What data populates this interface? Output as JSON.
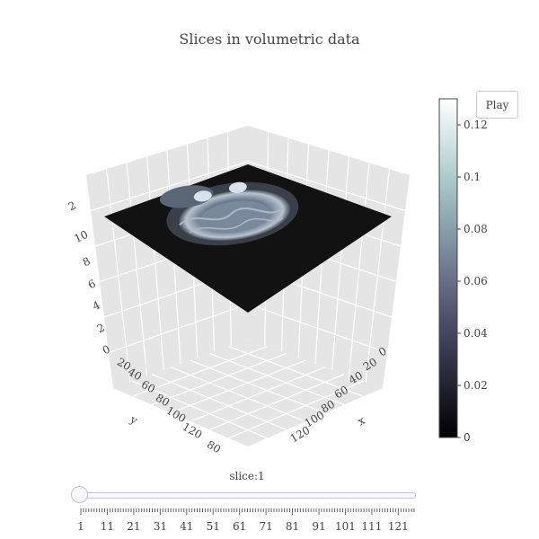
{
  "title": "Slices in volumetric data",
  "play_button": {
    "label": "Play"
  },
  "slider": {
    "prefix": "slice: ",
    "current": "1",
    "tick_labels": [
      "1",
      "11",
      "21",
      "31",
      "41",
      "51",
      "61",
      "71",
      "81",
      "91",
      "101",
      "111",
      "121"
    ]
  },
  "chart_data": {
    "type": "surface3d",
    "title": "Slices in volumetric data",
    "x_axis": {
      "title": "x",
      "tick_labels": [
        "0",
        "20",
        "40",
        "60",
        "80",
        "100",
        "120"
      ]
    },
    "y_axis": {
      "title": "y",
      "tick_labels": [
        "0",
        "20",
        "40",
        "60",
        "80",
        "100",
        "120"
      ]
    },
    "z_axis": {
      "title": "",
      "tick_labels": [
        "0",
        "2",
        "4",
        "6",
        "8",
        "10"
      ],
      "top_label": "2"
    },
    "slice_index": 1,
    "colorscale": "bone",
    "colorbar": {
      "min": 0,
      "max": 0.13,
      "tick_labels": [
        "0",
        "0.02",
        "0.04",
        "0.06",
        "0.08",
        "0.1",
        "0.12"
      ]
    },
    "grid": true
  },
  "colors": {
    "text": "#444444",
    "grid": "#ffffff",
    "pane": "#e5e5e5",
    "slice": "#121212"
  }
}
